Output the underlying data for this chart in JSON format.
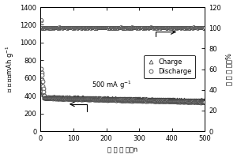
{
  "xlabel": "循 环 次 数，n",
  "ylabel_left": "比 容 量，mAh g-1",
  "ylabel_right": "库 伦 效 率，%",
  "xlim": [
    0,
    500
  ],
  "ylim_left": [
    0,
    1400
  ],
  "ylim_right": [
    0,
    120
  ],
  "yticks_left": [
    0,
    200,
    400,
    600,
    800,
    1000,
    1200,
    1400
  ],
  "yticks_right": [
    0,
    20,
    40,
    60,
    80,
    100,
    120
  ],
  "xticks": [
    0,
    100,
    200,
    300,
    400,
    500
  ],
  "annotation_text": "500 mA g-1",
  "charge_label": "Charge",
  "discharge_label": "Discharge",
  "marker_color": "#444444",
  "line_color": "#444444",
  "marker_size": 3.5,
  "initial_discharge_spike": 1250,
  "initial_charge_spike": 650,
  "stable_charge": 355,
  "stable_discharge": 330,
  "stable_coulombic": 100.0,
  "initial_coulombic": 108
}
